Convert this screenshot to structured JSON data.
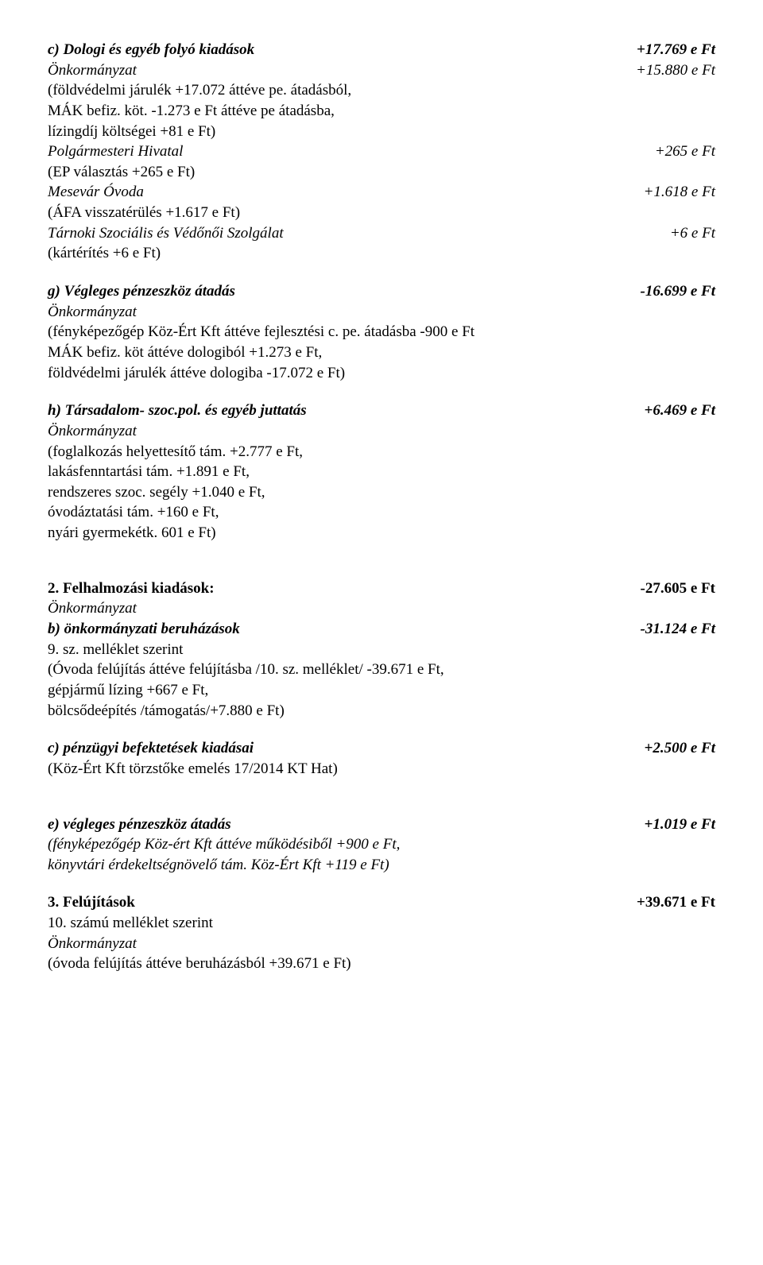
{
  "c": {
    "title": "c) Dologi és egyéb folyó kiadások",
    "title_val": "+17.769 e Ft",
    "onk": "Önkormányzat",
    "onk_val": "+15.880 e Ft",
    "line1": "(földvédelmi járulék +17.072 áttéve pe. átadásból,",
    "line2": "MÁK befiz. köt. -1.273 e Ft áttéve pe átadásba,",
    "line3": "lízingdíj költségei +81 e Ft)",
    "pol": "Polgármesteri Hivatal",
    "pol_val": "+265 e Ft",
    "pol_note": "(EP választás +265 e Ft)",
    "mes": "Mesevár Óvoda",
    "mes_val": "+1.618 e Ft",
    "mes_note": "(ÁFA visszatérülés +1.617 e Ft)",
    "tar": "Tárnoki Szociális és Védőnői Szolgálat",
    "tar_val": "+6 e Ft",
    "tar_note": "(kártérítés +6 e Ft)"
  },
  "g": {
    "title": "g) Végleges pénzeszköz átadás",
    "title_val": "-16.699 e Ft",
    "onk": "Önkormányzat",
    "line1": "(fényképezőgép Köz-Ért Kft áttéve fejlesztési c. pe. átadásba -900 e Ft",
    "line2": "MÁK befiz. köt áttéve dologiból +1.273 e Ft,",
    "line3": "földvédelmi járulék áttéve dologiba -17.072 e Ft)"
  },
  "h": {
    "title": "h) Társadalom- szoc.pol. és egyéb juttatás",
    "title_val": "+6.469 e Ft",
    "onk": "Önkormányzat",
    "line1": "(foglalkozás helyettesítő tám. +2.777 e Ft,",
    "line2": "lakásfenntartási tám. +1.891 e Ft,",
    "line3": "rendszeres szoc. segély +1.040 e Ft,",
    "line4": "óvodáztatási tám. +160 e Ft,",
    "line5": "nyári gyermekétk. 601 e Ft)"
  },
  "s2": {
    "title": "2. Felhalmozási kiadások:",
    "title_val": "-27.605 e Ft",
    "onk": "Önkormányzat",
    "b_title": "b) önkormányzati beruházások",
    "b_val": "-31.124 e Ft",
    "b_note1": "9. sz. melléklet szerint",
    "b_line1": "(Óvoda felújítás áttéve felújításba /10. sz. melléklet/ -39.671 e Ft,",
    "b_line2": "gépjármű lízing +667 e Ft,",
    "b_line3": "bölcsődeépítés /támogatás/+7.880 e Ft)",
    "c_title": "c) pénzügyi befektetések kiadásai",
    "c_val": "+2.500 e Ft",
    "c_note": "(Köz-Ért Kft törzstőke emelés 17/2014 KT Hat)",
    "e_title": "e) végleges pénzeszköz átadás",
    "e_val": "+1.019 e Ft",
    "e_line1": "(fényképezőgép Köz-ért Kft áttéve működésiből +900 e Ft,",
    "e_line2": "könyvtári érdekeltségnövelő tám. Köz-Ért Kft  +119 e Ft)"
  },
  "s3": {
    "title": "3. Felújítások",
    "title_val": "+39.671 e Ft",
    "note": "10. számú melléklet szerint",
    "onk": "Önkormányzat",
    "line": "(óvoda felújítás áttéve beruházásból +39.671 e Ft)"
  }
}
